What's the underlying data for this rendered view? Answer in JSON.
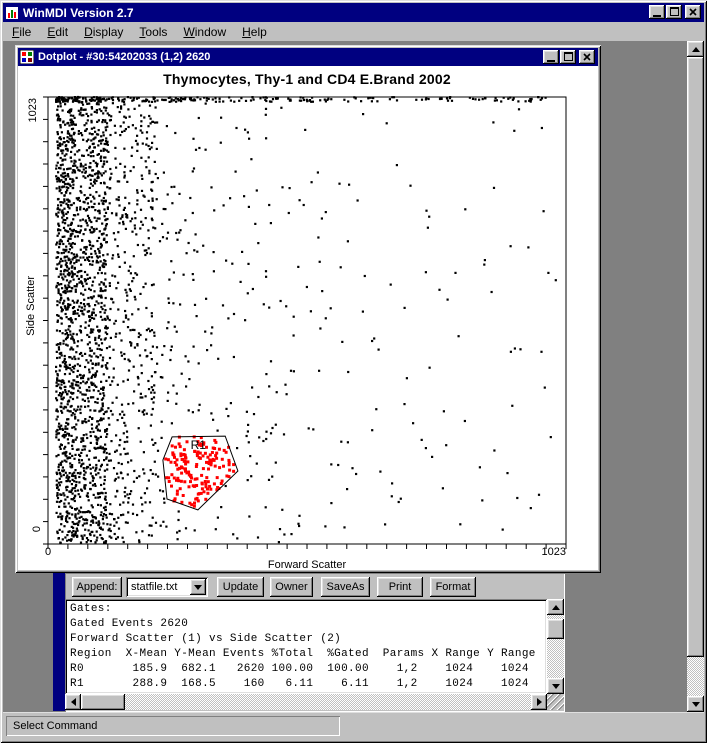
{
  "app": {
    "title": "WinMDI Version 2.7",
    "status_bar": "Select Command"
  },
  "menu": {
    "items": [
      "File",
      "Edit",
      "Display",
      "Tools",
      "Window",
      "Help"
    ]
  },
  "dotplot": {
    "title": "Dotplot - #30:54202033 (1,2) 2620"
  },
  "chart_data": {
    "type": "scatter",
    "title": "Thymocytes, Thy-1 and CD4  E.Brand 2002",
    "xlabel": "Forward Scatter",
    "ylabel": "Side Scatter",
    "xlim": [
      0,
      1023
    ],
    "ylim": [
      0,
      1023
    ],
    "x_tick_labels": [
      "0",
      "1023"
    ],
    "y_tick_labels": [
      "0",
      "1023"
    ],
    "grid": false,
    "legend": false,
    "total_events": 2620,
    "dot_color": "#000000",
    "axis_minor_tick_count_x": 26,
    "axis_minor_tick_count_y": 20,
    "gate": {
      "label": "R1",
      "color": "#ff0000",
      "events": 160,
      "polygon_data_units": [
        [
          245,
          245
        ],
        [
          350,
          247
        ],
        [
          375,
          167
        ],
        [
          296,
          78
        ],
        [
          235,
          103
        ],
        [
          227,
          192
        ]
      ],
      "cluster": {
        "count": 160,
        "center": [
          300,
          160
        ],
        "spread": [
          52,
          58
        ]
      }
    },
    "point_clusters": [
      {
        "name": "low-fsc-edge-dense",
        "count": 820,
        "x": [
          16,
          55
        ],
        "y": [
          2,
          1018
        ],
        "x_dist": "uniform"
      },
      {
        "name": "low-fsc-band",
        "count": 900,
        "x": [
          55,
          118
        ],
        "y": [
          2,
          1018
        ],
        "x_dist": "uniform"
      },
      {
        "name": "mid-band",
        "count": 380,
        "x": [
          118,
          205
        ],
        "y": [
          2,
          1018
        ],
        "x_dist": "uniform"
      },
      {
        "name": "falloff-band",
        "count": 240,
        "x": [
          205,
          430
        ],
        "y": [
          2,
          1018
        ],
        "x_dist": "left"
      },
      {
        "name": "sparse-tail",
        "count": 150,
        "x": [
          430,
          1005
        ],
        "y": [
          2,
          1018
        ],
        "x_dist": "left"
      },
      {
        "name": "saturated-top-row",
        "count": 250,
        "x": [
          16,
          985
        ],
        "y": [
          1012,
          1023
        ],
        "x_dist": "left"
      }
    ],
    "regions": [
      {
        "region": "R0",
        "x_mean": 185.9,
        "y_mean": 682.1,
        "events": 2620,
        "pct_total": 100.0,
        "pct_gated": 100.0,
        "params": "1,2",
        "x_range": 1024,
        "y_range": 1024
      },
      {
        "region": "R1",
        "x_mean": 288.9,
        "y_mean": 168.5,
        "events": 160,
        "pct_total": 6.11,
        "pct_gated": 6.11,
        "params": "1,2",
        "x_range": 1024,
        "y_range": 1024
      }
    ]
  },
  "stats_panel": {
    "toolbar": {
      "append_button": "Append:",
      "file_select": "statfile.txt",
      "buttons": [
        "Update",
        "Owner",
        "SaveAs",
        "Print",
        "Format"
      ]
    },
    "lines": [
      "Gates:",
      "Gated Events 2620",
      "Forward Scatter (1) vs Side Scatter (2)",
      "Region  X-Mean Y-Mean Events %Total  %Gated  Params X Range Y Range",
      "R0       185.9  682.1   2620 100.00  100.00    1,2    1024    1024",
      "R1       288.9  168.5    160   6.11    6.11    1,2    1024    1024"
    ]
  },
  "colors": {
    "titlebar": "#000080",
    "workspace": "#808080",
    "chrome": "#c0c0c0",
    "gate_dots": "#ff0000",
    "dots": "#000000"
  }
}
